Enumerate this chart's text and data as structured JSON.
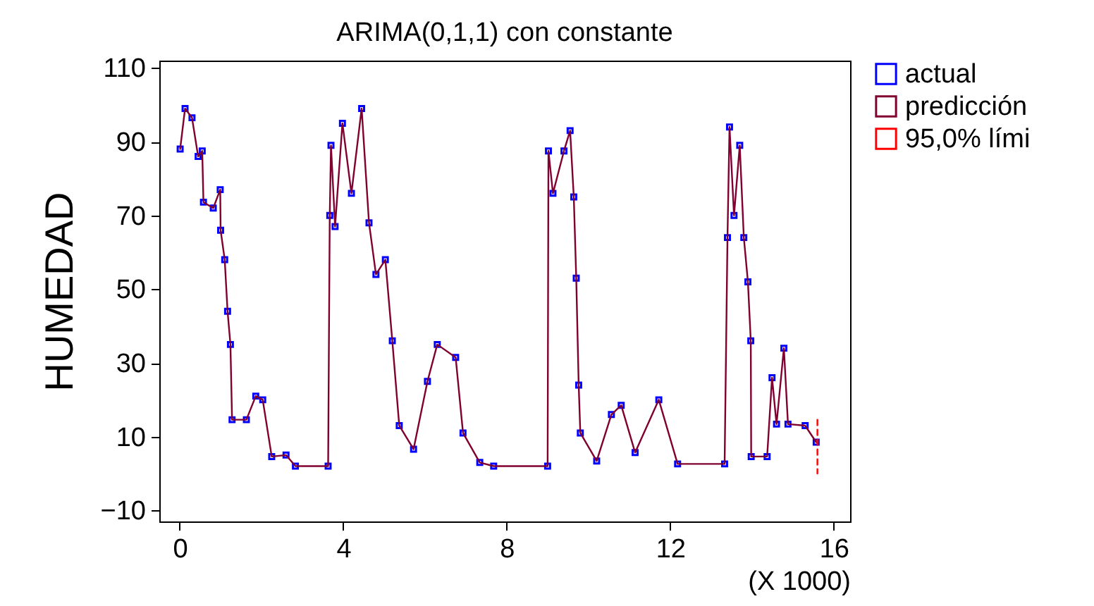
{
  "chart_data": {
    "type": "scatter",
    "title": "ARIMA(0,1,1) con constante",
    "xlabel": "(X 1000)",
    "ylabel": "HUMEDAD",
    "x": [
      0.01,
      0.13,
      0.3,
      0.45,
      0.55,
      0.58,
      0.82,
      0.99,
      1.0,
      1.1,
      1.17,
      1.24,
      1.28,
      1.63,
      1.86,
      2.03,
      2.25,
      2.6,
      2.83,
      3.63,
      3.67,
      3.7,
      3.8,
      3.98,
      4.2,
      4.45,
      4.63,
      4.8,
      5.03,
      5.2,
      5.37,
      5.72,
      6.06,
      6.3,
      6.75,
      6.93,
      7.34,
      7.68,
      9.0,
      9.02,
      9.13,
      9.4,
      9.55,
      9.64,
      9.7,
      9.76,
      9.8,
      10.2,
      10.56,
      10.8,
      11.14,
      11.72,
      12.18,
      13.33,
      13.4,
      13.45,
      13.56,
      13.7,
      13.8,
      13.9,
      13.97,
      13.98,
      14.37,
      14.49,
      14.6,
      14.78,
      14.88,
      15.3,
      15.57
    ],
    "series": [
      {
        "name": "actual",
        "color": "#0000ff",
        "marker": "square",
        "values": [
          88,
          99,
          96.5,
          86,
          87.5,
          73.6,
          72,
          77,
          66,
          58,
          44,
          35,
          14.6,
          14.6,
          21,
          20,
          4.6,
          5,
          2,
          2,
          70,
          89,
          67,
          95,
          76,
          99,
          68,
          54,
          58,
          36,
          13,
          6.6,
          25,
          35,
          31.5,
          11,
          3,
          2,
          2,
          87.5,
          76,
          87.5,
          93,
          75,
          53,
          24,
          11,
          3.4,
          16,
          18.5,
          5.7,
          20,
          2.6,
          2.6,
          64,
          94,
          70,
          89,
          64,
          52,
          36,
          4.6,
          4.6,
          26,
          13.4,
          34,
          13.4,
          13,
          8.5
        ]
      },
      {
        "name": "predicción",
        "type": "line",
        "color": "#800030",
        "line_style": "solid",
        "values": [
          88,
          99,
          96.5,
          86,
          87.5,
          73.6,
          72,
          77,
          66,
          58,
          44,
          35,
          14.6,
          14.6,
          21,
          20,
          4.6,
          5,
          2,
          2,
          70,
          89,
          67,
          95,
          76,
          99,
          68,
          54,
          58,
          36,
          13,
          6.6,
          25,
          35,
          31.5,
          11,
          3,
          2,
          2,
          87.5,
          76,
          87.5,
          93,
          75,
          53,
          24,
          11,
          3.4,
          16,
          18.5,
          5.7,
          20,
          2.6,
          2.6,
          64,
          94,
          70,
          89,
          64,
          52,
          36,
          4.6,
          4.6,
          26,
          13.4,
          34,
          13.4,
          13,
          8.5
        ]
      },
      {
        "name": "95,0% lími",
        "type": "line",
        "color": "#ff0000",
        "line_style": "dashed",
        "x": [
          15.6,
          15.6
        ],
        "values": [
          14.6,
          0
        ]
      }
    ],
    "xlim": [
      -0.5,
      16.4
    ],
    "xticks": [
      0,
      4,
      8,
      12,
      16
    ],
    "ylim": [
      -13,
      112
    ],
    "yticks": [
      -10,
      10,
      30,
      50,
      70,
      90,
      110
    ],
    "grid": false,
    "legend": "right"
  }
}
